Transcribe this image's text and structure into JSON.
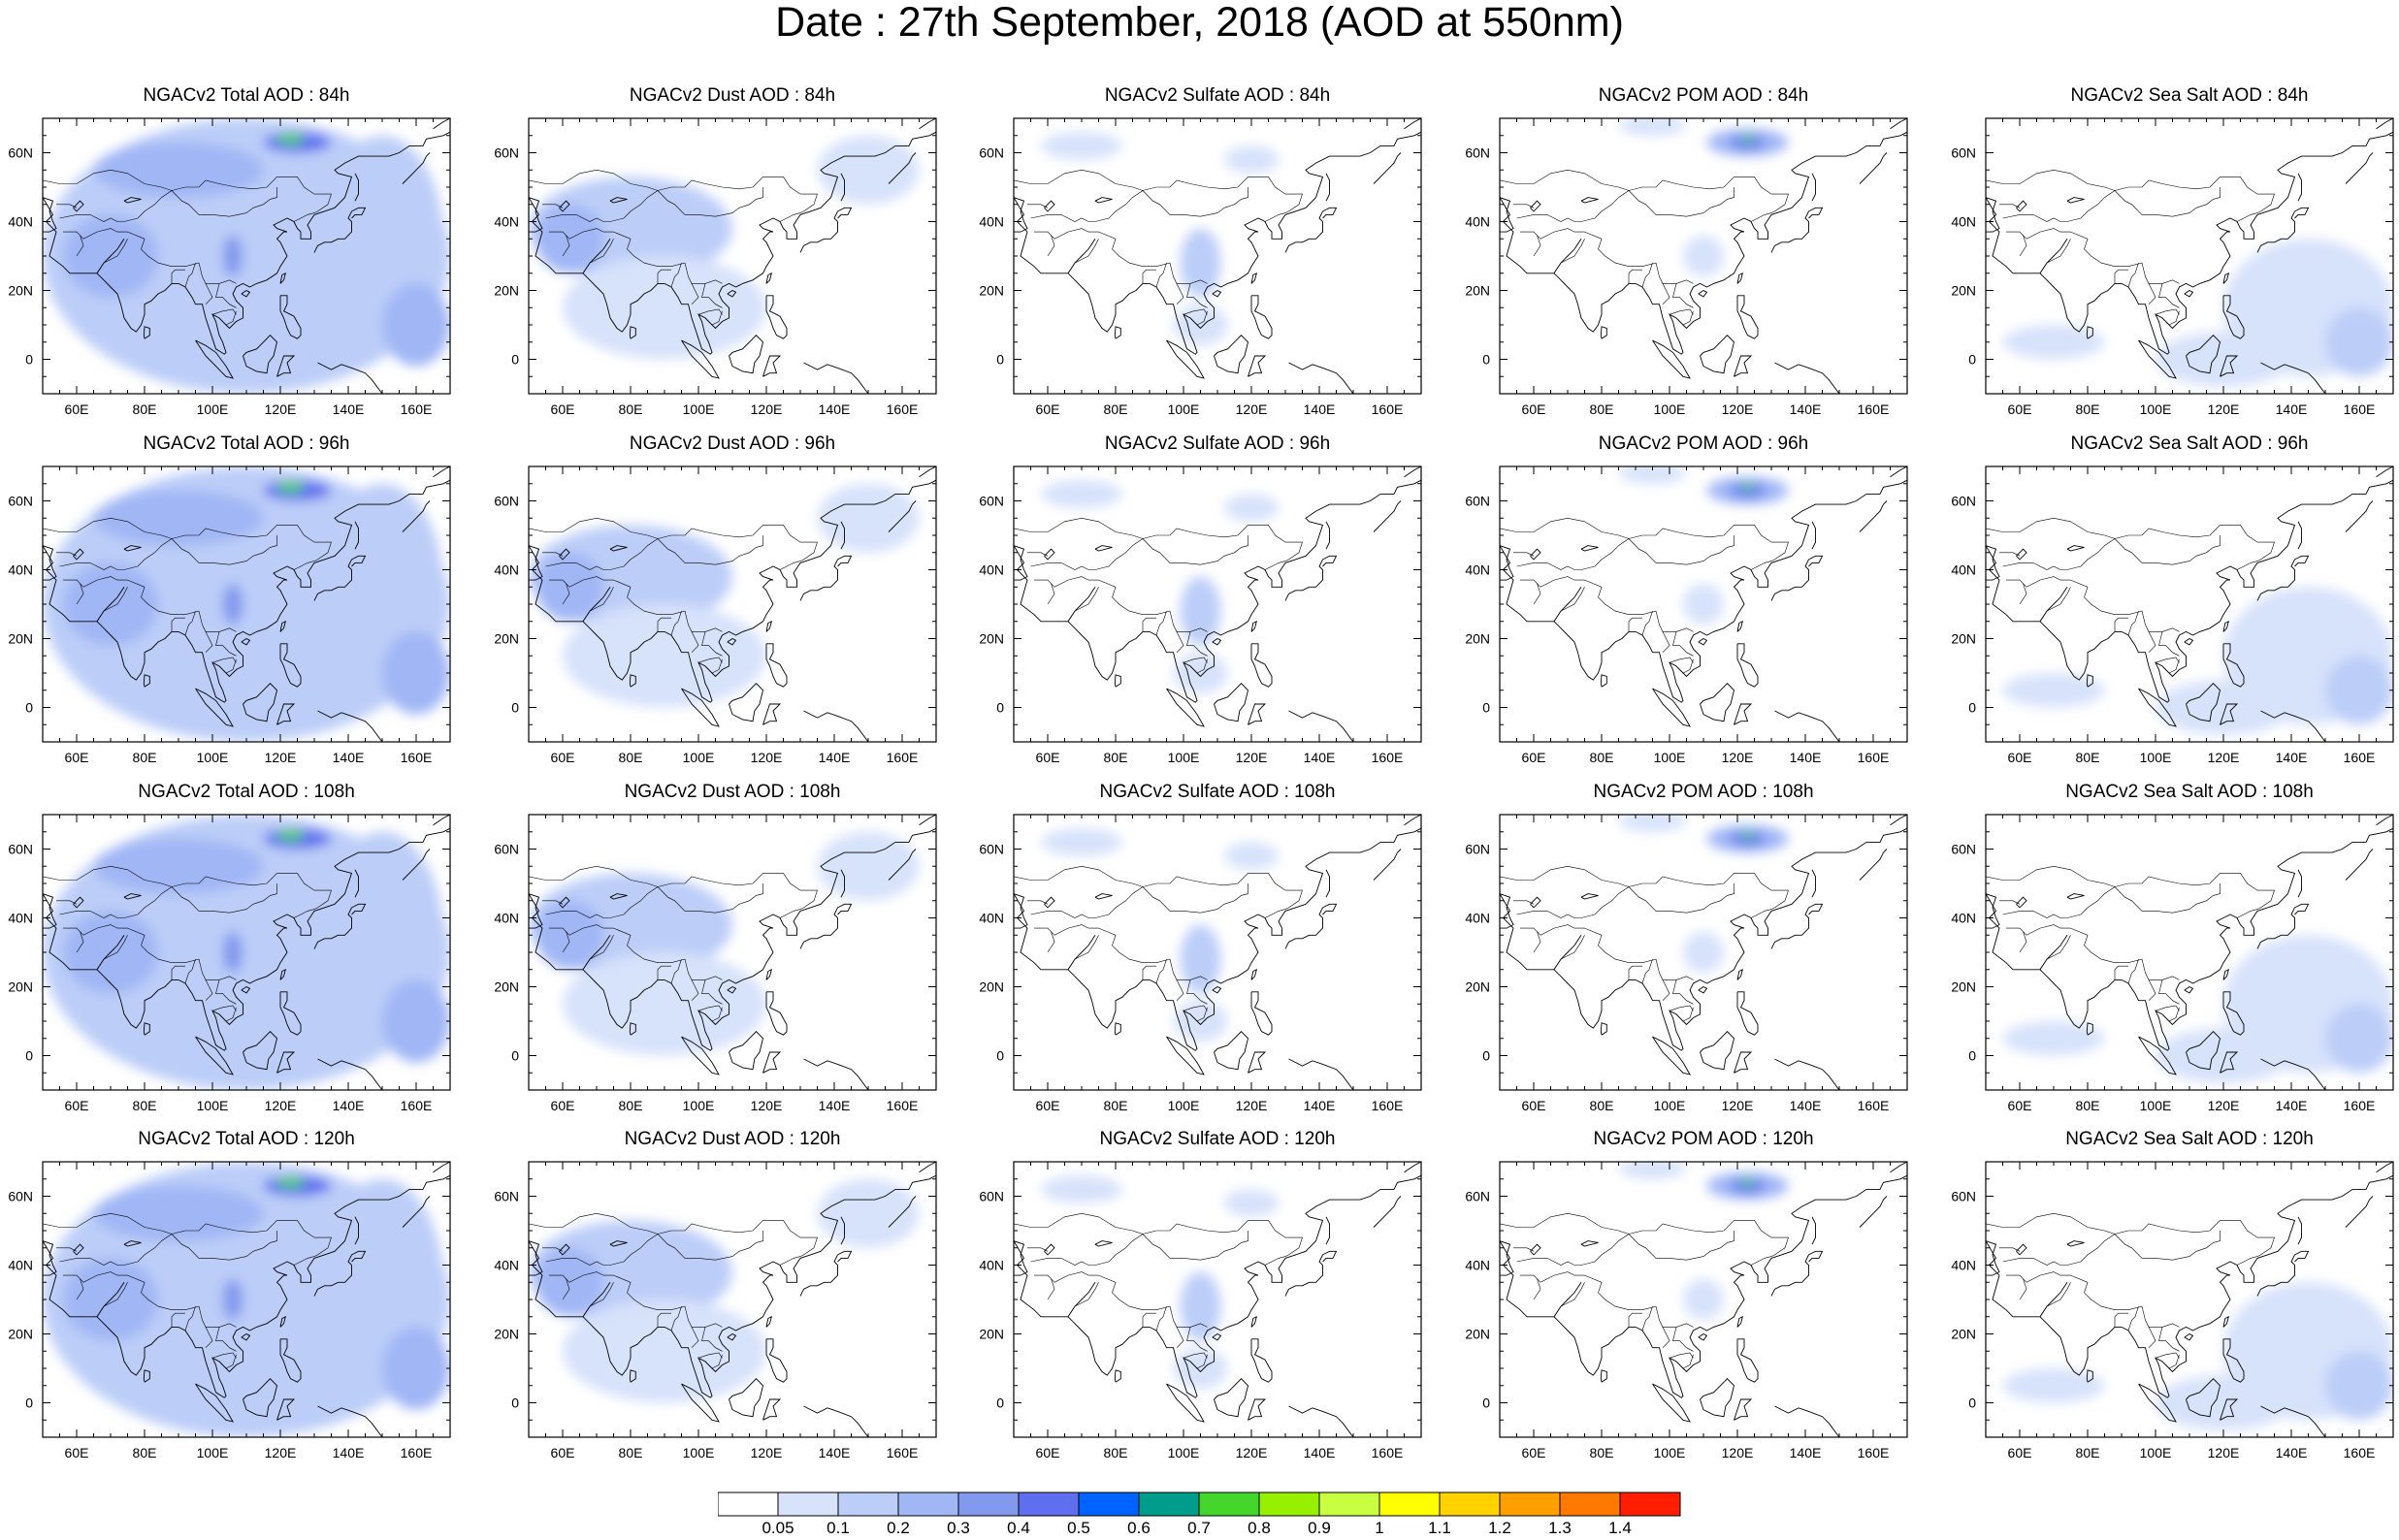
{
  "title": "Date : 27th September, 2018 (AOD at 550nm)",
  "panels": [
    {
      "title": "NGACv2 Total AOD : 84h",
      "species": "total",
      "hour": 84
    },
    {
      "title": "NGACv2 Dust AOD : 84h",
      "species": "dust",
      "hour": 84
    },
    {
      "title": "NGACv2 Sulfate AOD : 84h",
      "species": "sulfate",
      "hour": 84
    },
    {
      "title": "NGACv2 POM AOD : 84h",
      "species": "pom",
      "hour": 84
    },
    {
      "title": "NGACv2 Sea Salt AOD : 84h",
      "species": "seasalt",
      "hour": 84
    },
    {
      "title": "NGACv2 Total AOD : 96h",
      "species": "total",
      "hour": 96
    },
    {
      "title": "NGACv2 Dust AOD : 96h",
      "species": "dust",
      "hour": 96
    },
    {
      "title": "NGACv2 Sulfate AOD : 96h",
      "species": "sulfate",
      "hour": 96
    },
    {
      "title": "NGACv2 POM AOD : 96h",
      "species": "pom",
      "hour": 96
    },
    {
      "title": "NGACv2 Sea Salt AOD : 96h",
      "species": "seasalt",
      "hour": 96
    },
    {
      "title": "NGACv2 Total AOD : 108h",
      "species": "total",
      "hour": 108
    },
    {
      "title": "NGACv2 Dust AOD : 108h",
      "species": "dust",
      "hour": 108
    },
    {
      "title": "NGACv2 Sulfate AOD : 108h",
      "species": "sulfate",
      "hour": 108
    },
    {
      "title": "NGACv2 POM AOD : 108h",
      "species": "pom",
      "hour": 108
    },
    {
      "title": "NGACv2 Sea Salt AOD : 108h",
      "species": "seasalt",
      "hour": 108
    },
    {
      "title": "NGACv2 Total AOD : 120h",
      "species": "total",
      "hour": 120
    },
    {
      "title": "NGACv2 Dust AOD : 120h",
      "species": "dust",
      "hour": 120
    },
    {
      "title": "NGACv2 Sulfate AOD : 120h",
      "species": "sulfate",
      "hour": 120
    },
    {
      "title": "NGACv2 POM AOD : 120h",
      "species": "pom",
      "hour": 120
    },
    {
      "title": "NGACv2 Sea Salt  AOD : 120h",
      "species": "seasalt",
      "hour": 120
    }
  ],
  "axes": {
    "lon_range": [
      50,
      170
    ],
    "lat_range": [
      -10,
      70
    ],
    "lon_ticks": [
      60,
      80,
      100,
      120,
      140,
      160
    ],
    "lon_tick_labels": [
      "60E",
      "80E",
      "100E",
      "120E",
      "140E",
      "160E"
    ],
    "lat_ticks": [
      0,
      20,
      40,
      60
    ],
    "lat_tick_labels": [
      "0",
      "20N",
      "40N",
      "60N"
    ]
  },
  "colorbar": {
    "levels": [
      "0.05",
      "0.1",
      "0.2",
      "0.3",
      "0.4",
      "0.5",
      "0.6",
      "0.7",
      "0.8",
      "0.9",
      "1",
      "1.1",
      "1.2",
      "1.3",
      "1.4"
    ],
    "colors": [
      "#ffffff",
      "#d7e2fb",
      "#bccdf8",
      "#a0b6f5",
      "#8399ee",
      "#5f6ff0",
      "#0063ff",
      "#009c8c",
      "#44d62c",
      "#96f000",
      "#c8ff41",
      "#ffff00",
      "#ffd200",
      "#ffa000",
      "#ff7800",
      "#ff1e00"
    ]
  },
  "colors": {
    "background": "#ffffff",
    "coastline": "#000000"
  }
}
